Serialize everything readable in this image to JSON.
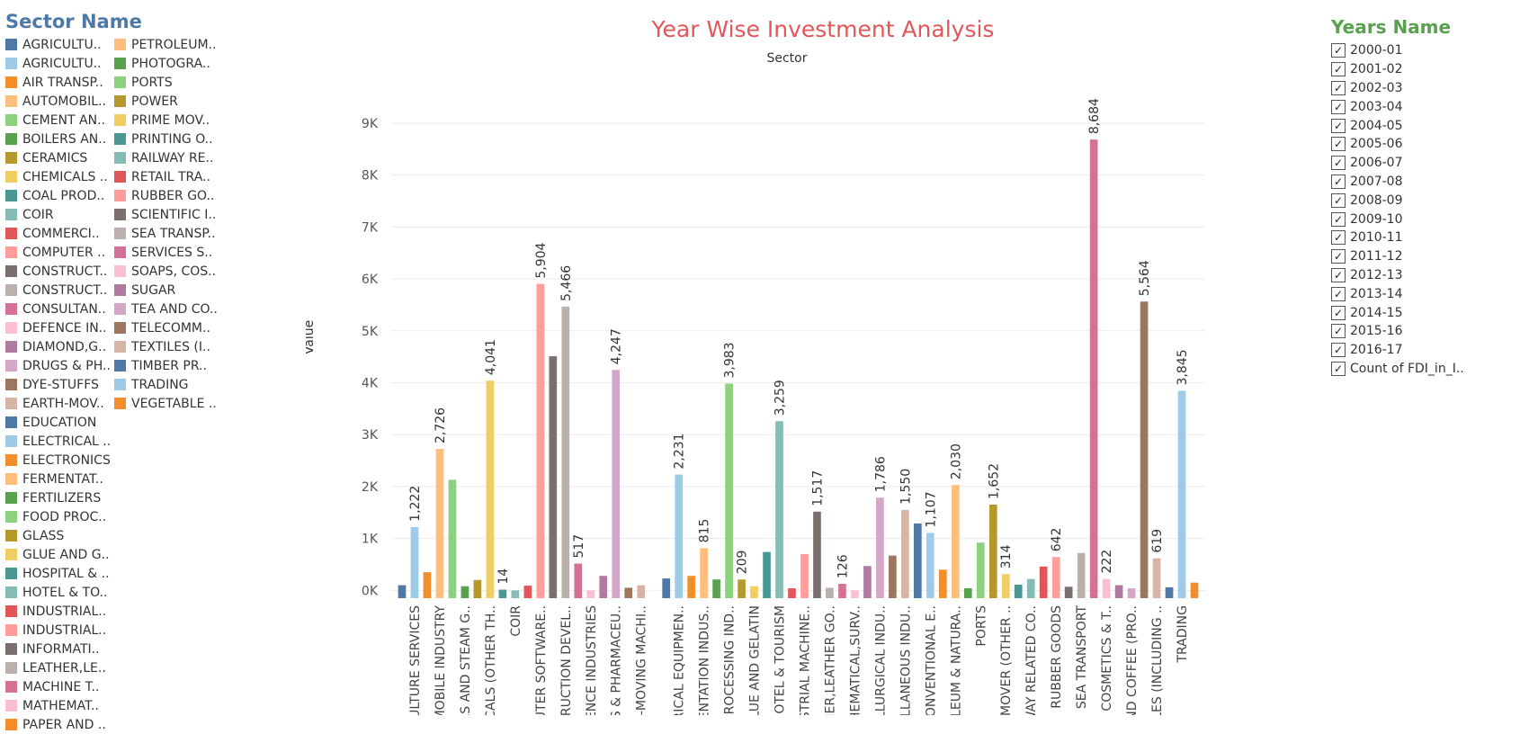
{
  "legend": {
    "title": "Sector Name",
    "items": [
      {
        "label": "AGRICULTU..",
        "color": "#4e79a7"
      },
      {
        "label": "AGRICULTU..",
        "color": "#a0cbe8"
      },
      {
        "label": "AIR TRANSP..",
        "color": "#f28e2b"
      },
      {
        "label": "AUTOMOBIL..",
        "color": "#ffbe7d"
      },
      {
        "label": "CEMENT AN..",
        "color": "#8cd17d"
      },
      {
        "label": "BOILERS AN..",
        "color": "#59a14f"
      },
      {
        "label": "CERAMICS",
        "color": "#b6992d"
      },
      {
        "label": "CHEMICALS ..",
        "color": "#f1ce63"
      },
      {
        "label": "COAL PROD..",
        "color": "#499894"
      },
      {
        "label": "COIR",
        "color": "#86bcb6"
      },
      {
        "label": "COMMERCI..",
        "color": "#e15759"
      },
      {
        "label": "COMPUTER ..",
        "color": "#ff9d9a"
      },
      {
        "label": "CONSTRUCT..",
        "color": "#79706e"
      },
      {
        "label": "CONSTRUCT..",
        "color": "#bab0ac"
      },
      {
        "label": "CONSULTAN..",
        "color": "#d37295"
      },
      {
        "label": "DEFENCE IN..",
        "color": "#fabfd2"
      },
      {
        "label": "DIAMOND,G..",
        "color": "#b07aa1"
      },
      {
        "label": "DRUGS & PH..",
        "color": "#d4a6c8"
      },
      {
        "label": "DYE-STUFFS",
        "color": "#9d7660"
      },
      {
        "label": "EARTH-MOV..",
        "color": "#d7b5a6"
      },
      {
        "label": "EDUCATION",
        "color": "#4e79a7"
      },
      {
        "label": "ELECTRICAL ..",
        "color": "#a0cbe8"
      },
      {
        "label": "ELECTRONICS",
        "color": "#f28e2b"
      },
      {
        "label": "FERMENTAT..",
        "color": "#ffbe7d"
      },
      {
        "label": "FERTILIZERS",
        "color": "#59a14f"
      },
      {
        "label": "FOOD PROC..",
        "color": "#8cd17d"
      },
      {
        "label": "GLASS",
        "color": "#b6992d"
      },
      {
        "label": "GLUE AND G..",
        "color": "#f1ce63"
      },
      {
        "label": "HOSPITAL & ..",
        "color": "#499894"
      },
      {
        "label": "HOTEL & TO..",
        "color": "#86bcb6"
      },
      {
        "label": "INDUSTRIAL..",
        "color": "#e15759"
      },
      {
        "label": "INDUSTRIAL..",
        "color": "#ff9d9a"
      },
      {
        "label": "INFORMATI..",
        "color": "#79706e"
      },
      {
        "label": "LEATHER,LE..",
        "color": "#bab0ac"
      },
      {
        "label": "MACHINE T..",
        "color": "#d37295"
      },
      {
        "label": "MATHEMAT..",
        "color": "#fabfd2"
      },
      {
        "label": "PAPER AND ..",
        "color": "#f28e2b"
      },
      {
        "label": "PETROLEUM..",
        "color": "#ffbe7d"
      },
      {
        "label": "PHOTOGRA..",
        "color": "#59a14f"
      },
      {
        "label": "PORTS",
        "color": "#8cd17d"
      },
      {
        "label": "POWER",
        "color": "#b6992d"
      },
      {
        "label": "PRIME MOV..",
        "color": "#f1ce63"
      },
      {
        "label": "PRINTING O..",
        "color": "#499894"
      },
      {
        "label": "RAILWAY RE..",
        "color": "#86bcb6"
      },
      {
        "label": "RETAIL TRA..",
        "color": "#e15759"
      },
      {
        "label": "RUBBER GO..",
        "color": "#ff9d9a"
      },
      {
        "label": "SCIENTIFIC I..",
        "color": "#79706e"
      },
      {
        "label": "SEA TRANSP..",
        "color": "#bab0ac"
      },
      {
        "label": "SERVICES S..",
        "color": "#d37295"
      },
      {
        "label": "SOAPS, COS..",
        "color": "#fabfd2"
      },
      {
        "label": "SUGAR",
        "color": "#b07aa1"
      },
      {
        "label": "TEA AND CO..",
        "color": "#d4a6c8"
      },
      {
        "label": "TELECOMM..",
        "color": "#9d7660"
      },
      {
        "label": "TEXTILES (I..",
        "color": "#d7b5a6"
      },
      {
        "label": "TIMBER PR..",
        "color": "#4e79a7"
      },
      {
        "label": "TRADING",
        "color": "#a0cbe8"
      },
      {
        "label": "VEGETABLE ..",
        "color": "#f28e2b"
      }
    ]
  },
  "years_filter": {
    "title": "Years Name",
    "items": [
      "2000-01",
      "2001-02",
      "2002-03",
      "2003-04",
      "2004-05",
      "2005-06",
      "2006-07",
      "2007-08",
      "2008-09",
      "2009-10",
      "2010-11",
      "2011-12",
      "2012-13",
      "2013-14",
      "2014-15",
      "2015-16",
      "2016-17",
      "Count of FDI_in_I.."
    ],
    "check_glyph": "✓"
  },
  "chart_data": {
    "type": "bar",
    "title": "Year Wise Investment Analysis",
    "column_header": "Sector",
    "ylabel": "Value",
    "ylim": [
      0,
      9900
    ],
    "yticks": [
      0,
      1000,
      2000,
      3000,
      4000,
      5000,
      6000,
      7000,
      8000,
      9000
    ],
    "ytick_labels": [
      "0K",
      "1K",
      "2K",
      "3K",
      "4K",
      "5K",
      "6K",
      "7K",
      "8K",
      "9K"
    ],
    "grid": true,
    "bars": [
      {
        "value": 100,
        "color": "#4e79a7"
      },
      {
        "value": 1222,
        "color": "#a0cbe8",
        "label": "1,222",
        "xlabel": "ULTURE SERVICES"
      },
      {
        "value": 350,
        "color": "#f28e2b"
      },
      {
        "value": 2726,
        "color": "#ffbe7d",
        "label": "2,726",
        "xlabel": "MOBILE INDUSTRY"
      },
      {
        "value": 2130,
        "color": "#8cd17d"
      },
      {
        "value": 80,
        "color": "#59a14f",
        "xlabel": "RS AND STEAM G.."
      },
      {
        "value": 200,
        "color": "#b6992d"
      },
      {
        "value": 4041,
        "color": "#f1ce63",
        "label": "4,041",
        "xlabel": "ICALS (OTHER TH.."
      },
      {
        "value": 14,
        "color": "#499894",
        "label": "14"
      },
      {
        "value": 0,
        "color": "#86bcb6",
        "xlabel": "COIR"
      },
      {
        "value": 90,
        "color": "#e15759"
      },
      {
        "value": 5904,
        "color": "#ff9d9a",
        "label": "5,904",
        "xlabel": "UTER SOFTWARE.."
      },
      {
        "value": 4510,
        "color": "#79706e"
      },
      {
        "value": 5466,
        "color": "#bab0ac",
        "label": "5,466",
        "xlabel": "TRUCTION DEVEL.."
      },
      {
        "value": 517,
        "color": "#d37295",
        "label": "517"
      },
      {
        "value": 0,
        "color": "#fabfd2",
        "xlabel": "ENCE INDUSTRIES"
      },
      {
        "value": 280,
        "color": "#b07aa1"
      },
      {
        "value": 4247,
        "color": "#d4a6c8",
        "label": "4,247",
        "xlabel": "S & PHARMACEU.."
      },
      {
        "value": 50,
        "color": "#9d7660"
      },
      {
        "value": 100,
        "color": "#d7b5a6",
        "xlabel": "H-MOVING MACHI.."
      },
      {
        "value": 0,
        "color": "#ffffff"
      },
      {
        "value": 230,
        "color": "#4e79a7"
      },
      {
        "value": 2231,
        "color": "#a0cbe8",
        "label": "2,231",
        "xlabel": "RICAL EQUIPMEN.."
      },
      {
        "value": 280,
        "color": "#f28e2b"
      },
      {
        "value": 815,
        "color": "#ffbe7d",
        "label": "815",
        "xlabel": "ENTATION INDUS.."
      },
      {
        "value": 210,
        "color": "#59a14f"
      },
      {
        "value": 3983,
        "color": "#8cd17d",
        "label": "3,983",
        "xlabel": "PROCESSING IND.."
      },
      {
        "value": 209,
        "color": "#b6992d",
        "label": "209"
      },
      {
        "value": 80,
        "color": "#f1ce63",
        "xlabel": "LUE AND GELATIN"
      },
      {
        "value": 740,
        "color": "#499894"
      },
      {
        "value": 3259,
        "color": "#86bcb6",
        "label": "3,259",
        "xlabel": "HOTEL & TOURISM"
      },
      {
        "value": 40,
        "color": "#e15759"
      },
      {
        "value": 700,
        "color": "#ff9d9a",
        "xlabel": "STRIAL MACHINE.."
      },
      {
        "value": 1517,
        "color": "#79706e",
        "label": "1,517"
      },
      {
        "value": 50,
        "color": "#bab0ac",
        "xlabel": "HER,LEATHER GO.."
      },
      {
        "value": 126,
        "color": "#d37295",
        "label": "126"
      },
      {
        "value": 0,
        "color": "#fabfd2",
        "xlabel": "HEMATICAL,SURV.."
      },
      {
        "value": 470,
        "color": "#b07aa1"
      },
      {
        "value": 1786,
        "color": "#d4a6c8",
        "label": "1,786",
        "xlabel": "LLURGICAL INDU.."
      },
      {
        "value": 670,
        "color": "#9d7660"
      },
      {
        "value": 1550,
        "color": "#d7b5a6",
        "label": "1,550",
        "xlabel": "ELLANEOUS INDU.."
      },
      {
        "value": 1290,
        "color": "#4e79a7"
      },
      {
        "value": 1107,
        "color": "#a0cbe8",
        "label": "1,107",
        "xlabel": "CONVENTIONAL E.."
      },
      {
        "value": 400,
        "color": "#f28e2b"
      },
      {
        "value": 2030,
        "color": "#ffbe7d",
        "label": "2,030",
        "xlabel": "OLEUM & NATURA.."
      },
      {
        "value": 40,
        "color": "#59a14f"
      },
      {
        "value": 920,
        "color": "#8cd17d",
        "xlabel": "PORTS"
      },
      {
        "value": 1652,
        "color": "#b6992d",
        "label": "1,652"
      },
      {
        "value": 314,
        "color": "#f1ce63",
        "label": "314",
        "xlabel": "E MOVER (OTHER .."
      },
      {
        "value": 110,
        "color": "#499894"
      },
      {
        "value": 220,
        "color": "#86bcb6",
        "xlabel": "WAY RELATED CO.."
      },
      {
        "value": 460,
        "color": "#e15759"
      },
      {
        "value": 642,
        "color": "#ff9d9a",
        "label": "642",
        "xlabel": "RUBBER GOODS"
      },
      {
        "value": 70,
        "color": "#79706e"
      },
      {
        "value": 720,
        "color": "#bab0ac",
        "xlabel": "SEA TRANSPORT"
      },
      {
        "value": 8684,
        "color": "#d37295",
        "label": "8,684"
      },
      {
        "value": 222,
        "color": "#fabfd2",
        "label": "222",
        "xlabel": "S, COSMETICS & T.."
      },
      {
        "value": 100,
        "color": "#b07aa1"
      },
      {
        "value": 40,
        "color": "#d4a6c8",
        "xlabel": "ND COFFEE (PRO.."
      },
      {
        "value": 5564,
        "color": "#9d7660",
        "label": "5,564"
      },
      {
        "value": 619,
        "color": "#d7b5a6",
        "label": "619",
        "xlabel": "LES (INCLUDING .."
      },
      {
        "value": 60,
        "color": "#4e79a7"
      },
      {
        "value": 3845,
        "color": "#a0cbe8",
        "label": "3,845",
        "xlabel": "TRADING"
      },
      {
        "value": 150,
        "color": "#f28e2b"
      }
    ]
  }
}
